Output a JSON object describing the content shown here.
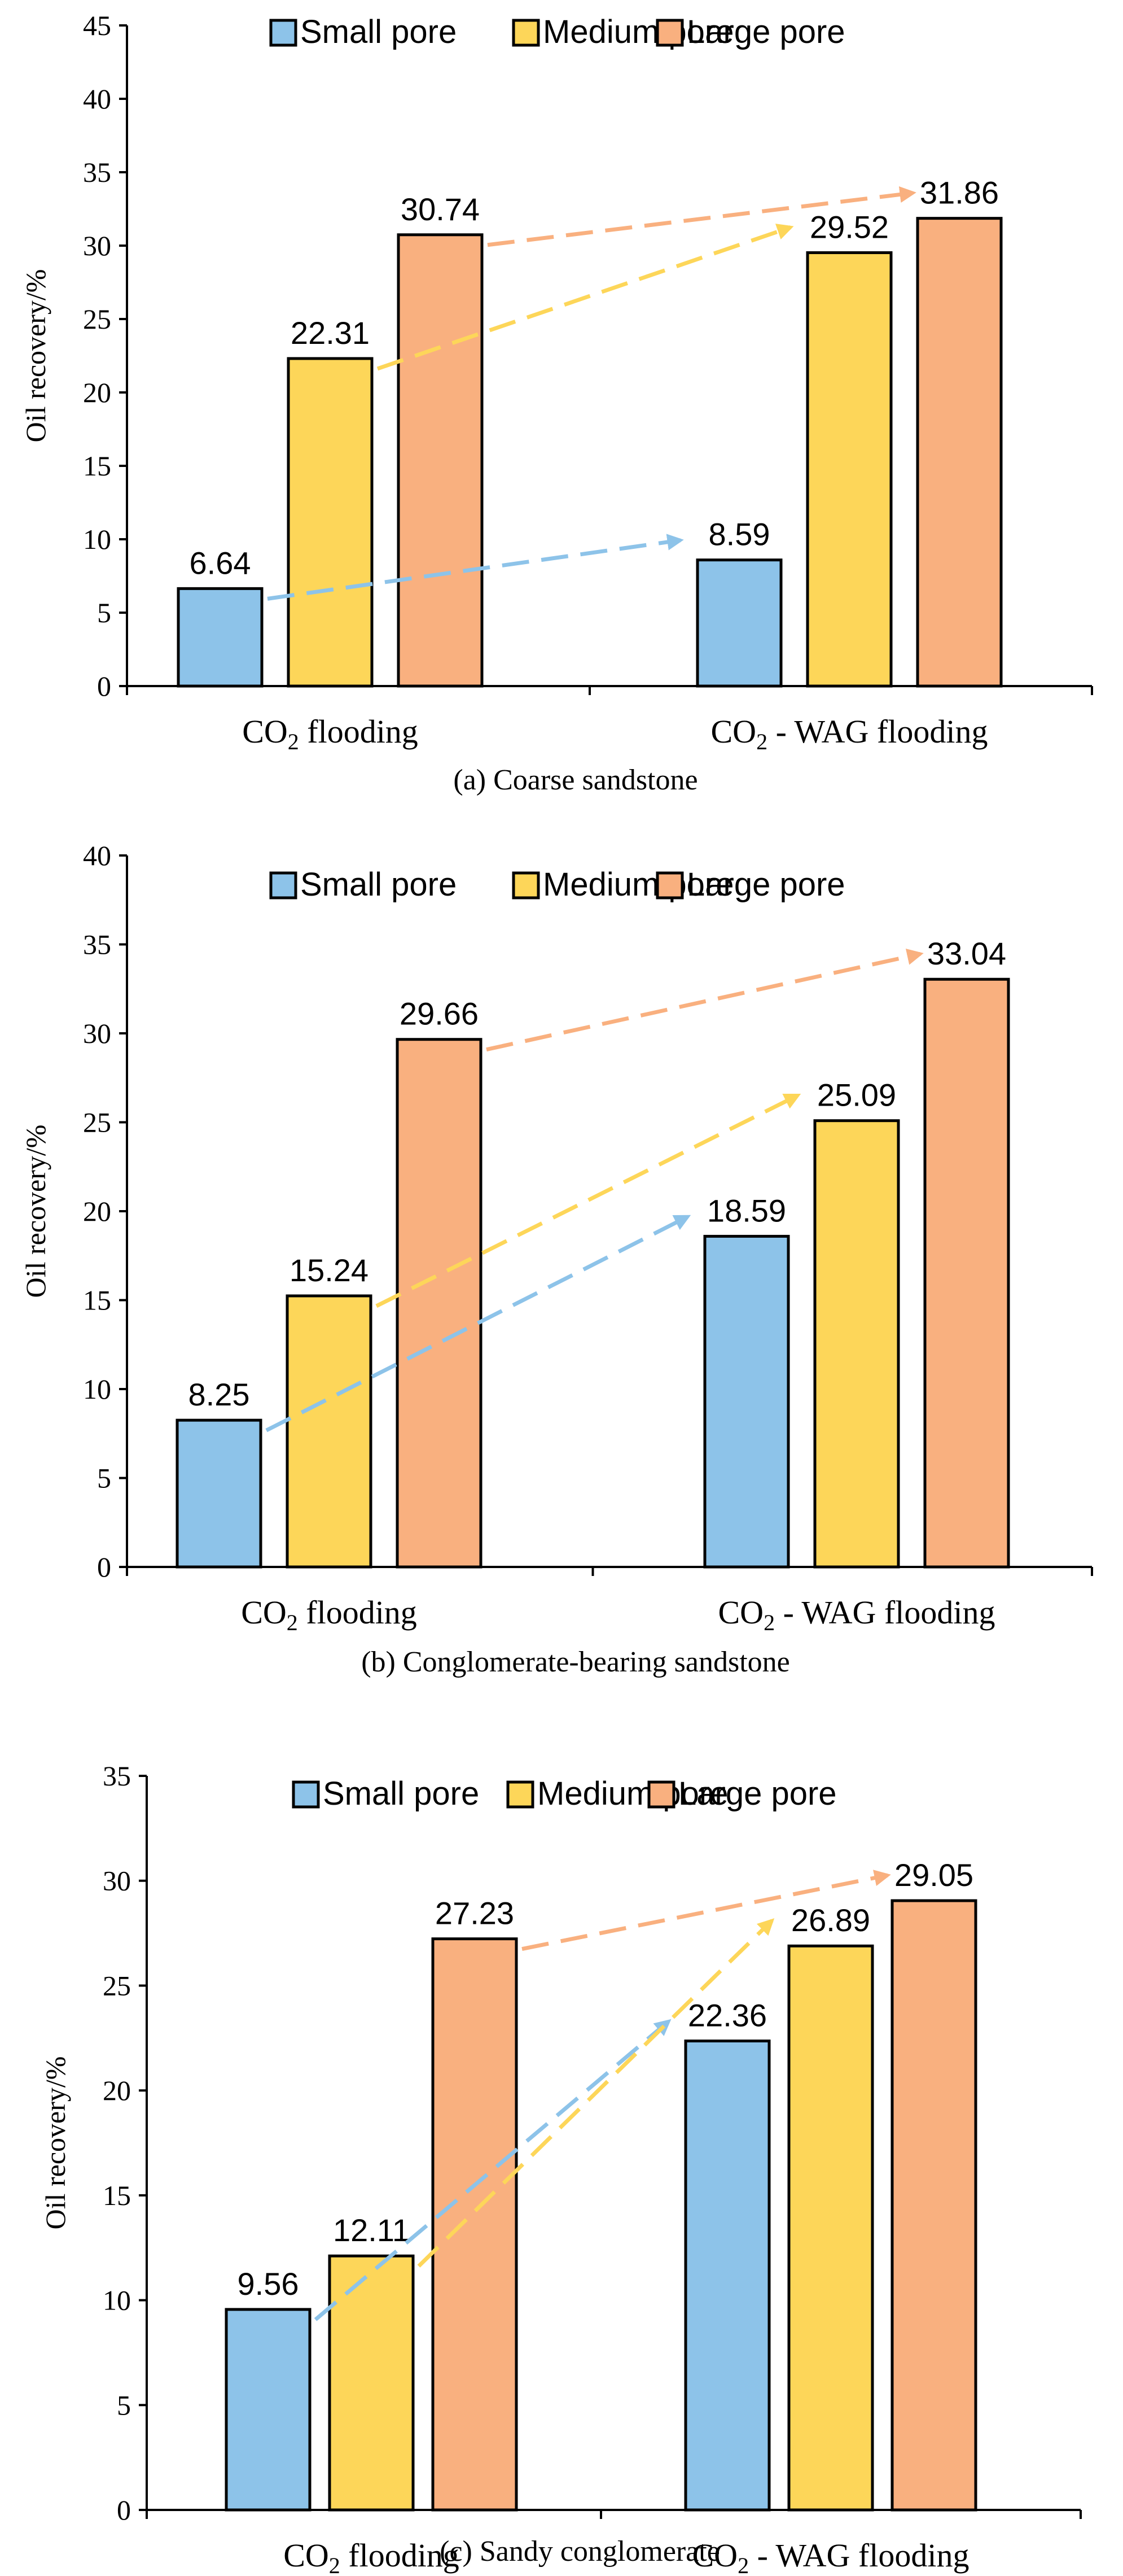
{
  "chart_data": [
    {
      "type": "bar",
      "caption": "(a) Coarse sandstone",
      "ylabel": "Oil recovery/%",
      "ylim": [
        0,
        45
      ],
      "ytick_step": 5,
      "categories": [
        {
          "main": "CO",
          "sub": "2",
          "rest": " flooding"
        },
        {
          "main": "CO",
          "sub": "2",
          "rest": " - WAG flooding"
        }
      ],
      "series": [
        {
          "name": "Small pore",
          "values": [
            6.64,
            8.59
          ],
          "labels": [
            "6.64",
            "8.59"
          ]
        },
        {
          "name": "Medium pore",
          "values": [
            22.31,
            29.52
          ],
          "labels": [
            "22.31",
            "29.52"
          ]
        },
        {
          "name": "Large pore",
          "values": [
            30.74,
            31.86
          ],
          "labels": [
            "30.74",
            "31.86"
          ]
        }
      ],
      "legend": "top-center",
      "trend_arrows": true
    },
    {
      "type": "bar",
      "caption": "(b) Conglomerate-bearing sandstone",
      "ylabel": "Oil recovery/%",
      "ylim": [
        0,
        40
      ],
      "ytick_step": 5,
      "categories": [
        {
          "main": "CO",
          "sub": "2",
          "rest": " flooding"
        },
        {
          "main": "CO",
          "sub": "2",
          "rest": " - WAG flooding"
        }
      ],
      "series": [
        {
          "name": "Small pore",
          "values": [
            8.25,
            18.59
          ],
          "labels": [
            "8.25",
            "18.59"
          ]
        },
        {
          "name": "Medium pore",
          "values": [
            15.24,
            25.09
          ],
          "labels": [
            "15.24",
            "25.09"
          ]
        },
        {
          "name": "Large pore",
          "values": [
            29.66,
            33.04
          ],
          "labels": [
            "29.66",
            "33.04"
          ]
        }
      ],
      "legend": "top-center",
      "trend_arrows": true
    },
    {
      "type": "bar",
      "caption": "(c) Sandy conglomerate",
      "ylabel": "Oil recovery/%",
      "ylim": [
        0,
        35
      ],
      "ytick_step": 5,
      "categories": [
        {
          "main": "CO",
          "sub": "2",
          "rest": " flooding"
        },
        {
          "main": "CO",
          "sub": "2",
          "rest": " - WAG flooding"
        }
      ],
      "series": [
        {
          "name": "Small pore",
          "values": [
            9.56,
            22.36
          ],
          "labels": [
            "9.56",
            "22.36"
          ]
        },
        {
          "name": "Medium pore",
          "values": [
            12.11,
            26.89
          ],
          "labels": [
            "12.11",
            "26.89"
          ]
        },
        {
          "name": "Large pore",
          "values": [
            27.23,
            29.05
          ],
          "labels": [
            "27.23",
            "29.05"
          ]
        }
      ],
      "legend": "top-center",
      "trend_arrows": true
    }
  ],
  "colors": {
    "small_pore_fill": "#8DC3E9",
    "medium_pore_fill": "#FDD659",
    "large_pore_fill": "#F9B07F",
    "small_pore_arrow": "#8DC3E9",
    "medium_pore_arrow": "#FDD659",
    "large_pore_arrow": "#F9B07F",
    "axis": "#000000",
    "text": "#000000"
  }
}
